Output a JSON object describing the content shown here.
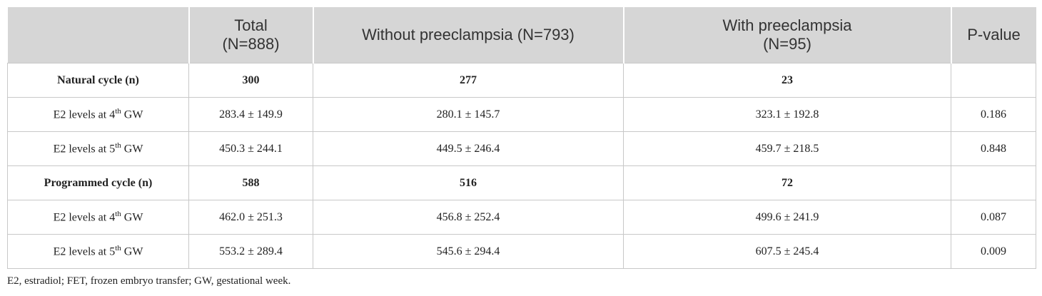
{
  "table": {
    "header": [
      [
        ""
      ],
      [
        "Total",
        "(N=888)"
      ],
      [
        "Without preeclampsia (N=793)"
      ],
      [
        "With preeclampsia",
        "(N=95)"
      ],
      [
        "P-value"
      ]
    ],
    "rows": [
      {
        "bold": true,
        "cells": [
          "Natural cycle (n)",
          "300",
          "277",
          "23",
          ""
        ]
      },
      {
        "bold": false,
        "cells": [
          {
            "pre": "E2 levels at 4",
            "sup": "th",
            "post": " GW"
          },
          "283.4 ± 149.9",
          "280.1 ± 145.7",
          "323.1 ± 192.8",
          "0.186"
        ]
      },
      {
        "bold": false,
        "cells": [
          {
            "pre": "E2 levels at 5",
            "sup": "th",
            "post": " GW"
          },
          "450.3 ± 244.1",
          "449.5 ± 246.4",
          "459.7 ± 218.5",
          "0.848"
        ]
      },
      {
        "bold": true,
        "cells": [
          "Programmed cycle (n)",
          "588",
          "516",
          "72",
          ""
        ]
      },
      {
        "bold": false,
        "cells": [
          {
            "pre": "E2 levels at 4",
            "sup": "th",
            "post": " GW"
          },
          "462.0 ± 251.3",
          "456.8 ± 252.4",
          "499.6 ± 241.9",
          "0.087"
        ]
      },
      {
        "bold": false,
        "cells": [
          {
            "pre": "E2 levels at 5",
            "sup": "th",
            "post": " GW"
          },
          "553.2 ± 289.4",
          "545.6 ± 294.4",
          "607.5 ± 245.4",
          "0.009"
        ]
      }
    ]
  },
  "footnote": "E2, estradiol; FET, frozen embryo transfer; GW, gestational week."
}
